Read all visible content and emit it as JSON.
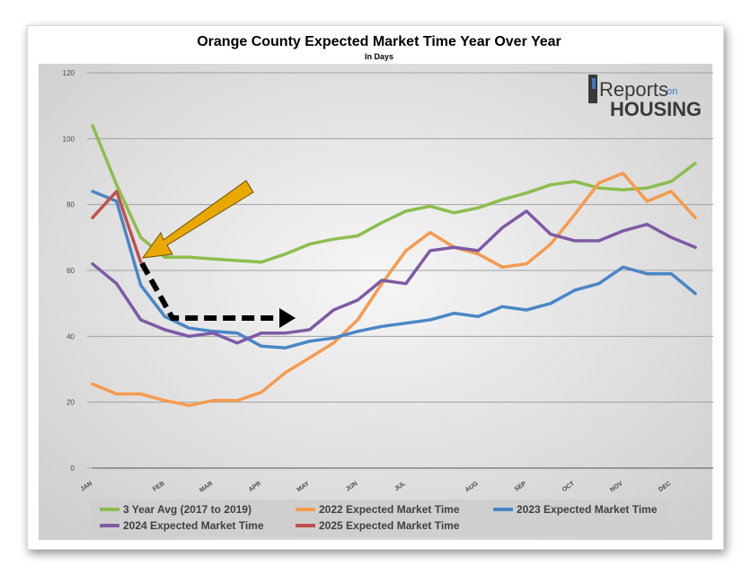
{
  "chart_data": {
    "type": "line",
    "title": "Orange County Expected Market Time Year Over Year",
    "subtitle": "In Days",
    "xlabel": "",
    "ylabel": "",
    "ylim": [
      0,
      120
    ],
    "yticks": [
      0,
      20,
      40,
      60,
      80,
      100,
      120
    ],
    "x_ticks": [
      "JAN",
      "FEB",
      "MAR",
      "APR",
      "MAY",
      "JUN",
      "JUL",
      "AUG",
      "SEP",
      "OCT",
      "NOV",
      "DEC"
    ],
    "x_tick_index": [
      0,
      3,
      5,
      7,
      9,
      11,
      13,
      16,
      18,
      20,
      22,
      24
    ],
    "points_count": 26,
    "grid": true,
    "legend_position": "bottom",
    "series": [
      {
        "name": "3 Year Avg (2017 to 2019)",
        "color": "#8dbd4e",
        "values": [
          104,
          86,
          70,
          64,
          64,
          63.5,
          63,
          62.5,
          65,
          68,
          69.5,
          70.5,
          74.5,
          78,
          79.5,
          77.5,
          79,
          81.5,
          83.5,
          86,
          87,
          85,
          84.5,
          85,
          87,
          92.5
        ]
      },
      {
        "name": "2022 Expected Market Time",
        "color": "#f59b4e",
        "values": [
          25.5,
          22.5,
          22.5,
          20.5,
          19,
          20.5,
          20.5,
          23,
          29,
          33.5,
          38,
          45,
          56,
          66,
          71.5,
          67,
          65,
          61,
          62,
          68,
          77,
          86.5,
          89.5,
          81,
          84,
          76
        ]
      },
      {
        "name": "2023 Expected Market Time",
        "color": "#4a86c6",
        "values": [
          84,
          81,
          55.5,
          46,
          42.5,
          41.5,
          41,
          37,
          36.5,
          38.5,
          39.5,
          41.5,
          43,
          44,
          45,
          47,
          46,
          49,
          48,
          50,
          54,
          56,
          61,
          59,
          59,
          53
        ]
      },
      {
        "name": "2024 Expected Market Time",
        "color": "#7e5aa5",
        "values": [
          62,
          56,
          45,
          42,
          40,
          41,
          38,
          41,
          41,
          42,
          48,
          51,
          57,
          56,
          66,
          67,
          66,
          73,
          78,
          71,
          69,
          69,
          72,
          74,
          70,
          67
        ]
      },
      {
        "name": "2025 Expected Market Time",
        "color": "#c0504d",
        "values": [
          76,
          84,
          62.5
        ]
      }
    ],
    "annotations": [
      {
        "type": "arrow",
        "color": "#e8a800",
        "direction": "pointing down-left to FEB 2025 value"
      },
      {
        "type": "dashed-arrow",
        "color": "#000000",
        "direction": "from FEB down to ~45 then right to ~45"
      }
    ]
  },
  "branding": {
    "logo_line1": "Reports",
    "logo_on": "on",
    "logo_line2": "HOUSING"
  },
  "colors": {
    "plot_background": "#d9d9d9",
    "plot_center": "#f4f4f4",
    "gridline": "#a0a0a0"
  }
}
